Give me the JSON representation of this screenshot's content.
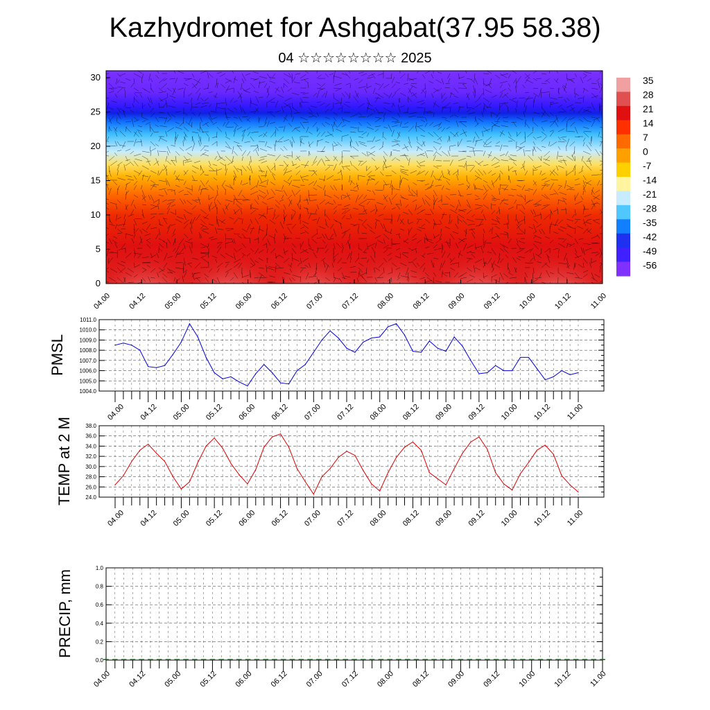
{
  "page": {
    "title": "Kazhydromet for Ashgabat(37.95 58.38)",
    "subtitle": "04 ☆☆☆☆☆☆☆☆ 2025"
  },
  "colorbar": {
    "labels": [
      "35",
      "28",
      "21",
      "14",
      "7",
      "0",
      "-7",
      "-14",
      "-21",
      "-28",
      "-35",
      "-42",
      "-49",
      "-56"
    ],
    "colors": [
      "#f0a0a0",
      "#e05050",
      "#e01010",
      "#ff3000",
      "#ff6a00",
      "#ffa000",
      "#ffd000",
      "#fff5a0",
      "#c8ecff",
      "#50c8ff",
      "#1080ff",
      "#2030f0",
      "#4020ff",
      "#8030ff"
    ]
  },
  "chart_data": [
    {
      "type": "heatmap",
      "description_var": "temperature cross-section with wind vectors",
      "xlabel": "",
      "ylabel": "",
      "x_ticks": [
        "04.00",
        "04.12",
        "05.00",
        "05.12",
        "06.00",
        "06.12",
        "07.00",
        "07.12",
        "08.00",
        "08.12",
        "09.00",
        "09.12",
        "10.00",
        "10.12",
        "11.00"
      ],
      "y_ticks": [
        0,
        5,
        10,
        15,
        20,
        25,
        30
      ],
      "ylim": [
        0,
        31
      ],
      "value_range": [
        -56,
        35
      ]
    },
    {
      "type": "line",
      "ylabel": "PMSL",
      "ylim": [
        1004.0,
        1011.0
      ],
      "y_ticks": [
        "1004.0",
        "1005.0",
        "1006.0",
        "1007.0",
        "1008.0",
        "1009.0",
        "1010.0",
        "1011.0"
      ],
      "x_ticks": [
        "04.00",
        "04.12",
        "05.00",
        "05.12",
        "06.00",
        "06.12",
        "07.00",
        "07.12",
        "08.00",
        "08.12",
        "09.00",
        "09.12",
        "10.00",
        "10.12",
        "11.00"
      ],
      "color": "#0000dd",
      "x_step_hours": 3,
      "values": [
        1008.5,
        1008.7,
        1008.5,
        1008.0,
        1006.4,
        1006.3,
        1006.5,
        1007.6,
        1008.8,
        1010.6,
        1009.3,
        1007.3,
        1005.8,
        1005.2,
        1005.4,
        1004.9,
        1004.5,
        1005.7,
        1006.6,
        1005.8,
        1004.8,
        1004.7,
        1006.0,
        1006.6,
        1007.8,
        1009.0,
        1009.9,
        1009.2,
        1008.2,
        1007.8,
        1008.8,
        1009.2,
        1009.3,
        1010.3,
        1010.6,
        1009.5,
        1007.9,
        1007.8,
        1008.9,
        1008.2,
        1007.9,
        1009.3,
        1008.4,
        1007.0,
        1005.7,
        1005.8,
        1006.5,
        1006.0,
        1006.0,
        1007.3,
        1007.3,
        1006.2,
        1005.1,
        1005.4,
        1006.0,
        1005.6,
        1005.8
      ]
    },
    {
      "type": "line",
      "ylabel": "TEMP at 2 M",
      "ylim": [
        24.0,
        38.0
      ],
      "y_ticks": [
        "24.0",
        "26.0",
        "28.0",
        "30.0",
        "32.0",
        "34.0",
        "36.0",
        "38.0"
      ],
      "x_ticks": [
        "04.00",
        "04.12",
        "05.00",
        "05.12",
        "06.00",
        "06.12",
        "07.00",
        "07.12",
        "08.00",
        "08.12",
        "09.00",
        "09.12",
        "10.00",
        "10.12",
        "11.00"
      ],
      "color": "#dd0000",
      "x_step_hours": 3,
      "values": [
        26.4,
        28.2,
        31.0,
        33.2,
        34.4,
        32.6,
        31.0,
        28.0,
        25.6,
        27.0,
        30.8,
        34.0,
        35.6,
        33.6,
        30.6,
        28.4,
        26.6,
        29.4,
        33.8,
        35.8,
        36.4,
        33.8,
        29.6,
        27.0,
        24.6,
        28.0,
        29.6,
        31.8,
        33.0,
        32.2,
        29.2,
        26.6,
        25.2,
        28.8,
        31.8,
        33.8,
        34.8,
        33.2,
        28.8,
        27.6,
        26.4,
        29.6,
        32.6,
        34.8,
        35.8,
        33.4,
        28.8,
        26.6,
        25.4,
        28.6,
        30.8,
        33.2,
        34.2,
        32.4,
        28.2,
        26.4,
        25.0
      ]
    },
    {
      "type": "bar",
      "ylabel": "PRECIP, mm",
      "ylim": [
        0.0,
        1.0
      ],
      "y_ticks": [
        "0.0",
        "0.2",
        "0.4",
        "0.6",
        "0.8",
        "1.0"
      ],
      "x_ticks": [
        "04.00",
        "04.12",
        "05.00",
        "05.12",
        "06.00",
        "06.12",
        "07.00",
        "07.12",
        "08.00",
        "08.12",
        "09.00",
        "09.12",
        "10.00",
        "10.12",
        "11.00"
      ],
      "color": "#006600",
      "x_step_hours": 3,
      "values": [
        0,
        0,
        0,
        0,
        0,
        0,
        0,
        0,
        0,
        0,
        0,
        0,
        0,
        0,
        0,
        0,
        0,
        0,
        0,
        0,
        0,
        0,
        0,
        0,
        0,
        0,
        0,
        0,
        0,
        0,
        0,
        0,
        0,
        0,
        0,
        0,
        0,
        0,
        0,
        0,
        0,
        0,
        0,
        0,
        0,
        0,
        0,
        0,
        0,
        0,
        0,
        0,
        0,
        0,
        0,
        0,
        0
      ]
    }
  ]
}
